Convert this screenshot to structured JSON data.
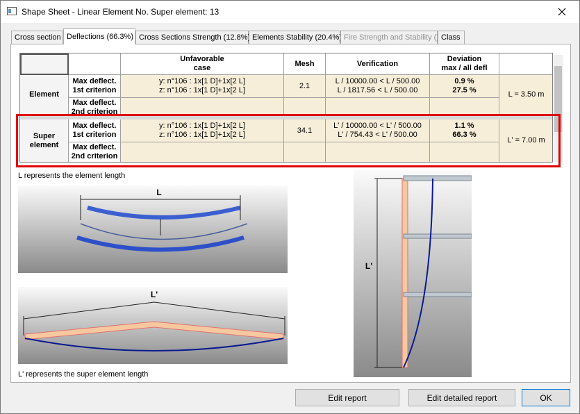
{
  "window": {
    "title": "Shape Sheet - Linear Element No. Super element: 13"
  },
  "tabs": [
    "Cross section",
    "Deflections (66.3%)",
    "Cross Sections Strength (12.8%)",
    "Elements Stability (20.4%)",
    "Fire Strength and Stability ()",
    "Class"
  ],
  "table": {
    "headers": [
      [
        "Unfavorable",
        "case"
      ],
      [
        "Mesh"
      ],
      [
        "Verification"
      ],
      [
        "Deviation",
        "max / all defl"
      ]
    ],
    "groups": [
      {
        "label": [
          "Element"
        ],
        "criteria": [
          [
            "Max deflect.",
            "1st criterion"
          ],
          [
            "Max deflect.",
            "2nd criterion"
          ]
        ],
        "case": [
          "y:  n°106 : 1x[1 D]+1x[2 L]",
          "z:  n°106 : 1x[1 D]+1x[2 L]"
        ],
        "mesh": "2.1",
        "verification": [
          "L / 10000.00 < L / 500.00",
          "L / 1817.56 < L / 500.00"
        ],
        "deviation": [
          "0.9 %",
          "27.5 %"
        ],
        "length": "L = 3.50 m"
      },
      {
        "label": [
          "Super",
          "element"
        ],
        "criteria": [
          [
            "Max deflect.",
            "1st criterion"
          ],
          [
            "Max deflect.",
            "2nd criterion"
          ]
        ],
        "case": [
          "y:  n°106 : 1x[1 D]+1x[2 L]",
          "z:  n°106 : 1x[1 D]+1x[2 L]"
        ],
        "mesh": "34.1",
        "verification": [
          "L' / 10000.00 < L' / 500.00",
          "L' / 754.43 < L' / 500.00"
        ],
        "deviation": [
          "1.1 %",
          "66.3 %"
        ],
        "length": "L' = 7.00 m"
      }
    ]
  },
  "captions": [
    "L represents the element length",
    "L' represents the super element length"
  ],
  "figures": [
    "L",
    "L'",
    "L'"
  ],
  "buttons": [
    "Edit report",
    "Edit detailed report",
    "OK"
  ]
}
